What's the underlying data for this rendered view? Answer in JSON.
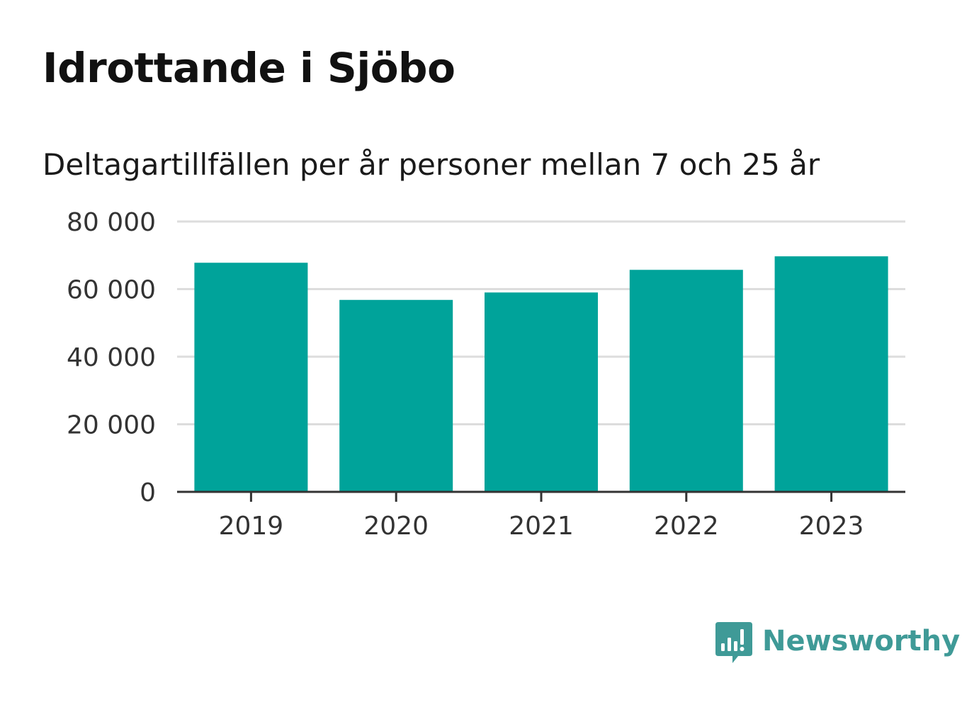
{
  "title": "Idrottande i Sjöbo",
  "subtitle": "Deltagartillfällen per år personer mellan 7 och 25 år",
  "brand": {
    "name": "Newsworthy",
    "logo_icon": "newsworthy-logo-icon",
    "color": "#3f9a97"
  },
  "chart_data": {
    "type": "bar",
    "categories": [
      "2019",
      "2020",
      "2021",
      "2022",
      "2023"
    ],
    "values": [
      67800,
      56800,
      59000,
      65700,
      69700
    ],
    "y_ticks": [
      0,
      20000,
      40000,
      60000,
      80000
    ],
    "y_tick_labels": [
      "0",
      "20 000",
      "40 000",
      "60 000",
      "80 000"
    ],
    "ylim": [
      0,
      80000
    ],
    "grid": true,
    "bar_color": "#00a39a",
    "grid_color": "#dddddd",
    "axis_color": "#333333"
  }
}
